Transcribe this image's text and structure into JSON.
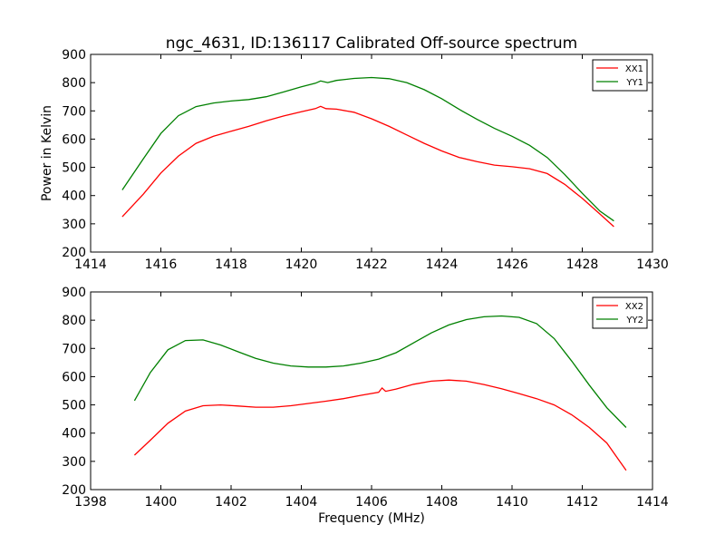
{
  "title": "ngc_4631, ID:136117 Calibrated Off-source spectrum",
  "colors": {
    "XX": "#ff0000",
    "YY": "#008000"
  },
  "chart_data": [
    {
      "type": "line",
      "title": "ngc_4631, ID:136117 Calibrated Off-source spectrum",
      "xlabel": "",
      "ylabel": "Power in Kelvin",
      "xlim": [
        1414,
        1430
      ],
      "ylim": [
        200,
        900
      ],
      "xticks": [
        1414,
        1416,
        1418,
        1420,
        1422,
        1424,
        1426,
        1428,
        1430
      ],
      "yticks": [
        200,
        300,
        400,
        500,
        600,
        700,
        800,
        900
      ],
      "legend": "top-right",
      "series": [
        {
          "name": "XX1",
          "color": "#ff0000",
          "x": [
            1414.9,
            1415.5,
            1416,
            1416.5,
            1417,
            1417.5,
            1418,
            1418.5,
            1419,
            1419.5,
            1420,
            1420.4,
            1420.55,
            1420.7,
            1421,
            1421.5,
            1422,
            1422.5,
            1423,
            1423.5,
            1424,
            1424.5,
            1425,
            1425.5,
            1426,
            1426.5,
            1427,
            1427.5,
            1428,
            1428.5,
            1428.9
          ],
          "y": [
            325,
            405,
            480,
            540,
            585,
            610,
            628,
            645,
            665,
            682,
            697,
            708,
            716,
            708,
            706,
            695,
            672,
            645,
            615,
            585,
            558,
            535,
            520,
            508,
            502,
            495,
            478,
            440,
            390,
            335,
            290
          ]
        },
        {
          "name": "YY1",
          "color": "#008000",
          "x": [
            1414.9,
            1415.5,
            1416,
            1416.5,
            1417,
            1417.5,
            1418,
            1418.5,
            1419,
            1419.5,
            1420,
            1420.4,
            1420.55,
            1420.75,
            1421,
            1421.5,
            1422,
            1422.5,
            1423,
            1423.5,
            1424,
            1424.5,
            1425,
            1425.5,
            1426,
            1426.5,
            1427,
            1427.5,
            1428,
            1428.5,
            1428.9
          ],
          "y": [
            420,
            530,
            620,
            683,
            715,
            728,
            735,
            740,
            750,
            767,
            785,
            798,
            806,
            800,
            808,
            815,
            818,
            814,
            800,
            775,
            743,
            705,
            670,
            638,
            610,
            578,
            535,
            475,
            408,
            345,
            310
          ]
        }
      ]
    },
    {
      "type": "line",
      "title": "",
      "xlabel": "Frequency (MHz)",
      "ylabel": "",
      "xlim": [
        1398,
        1414
      ],
      "ylim": [
        200,
        900
      ],
      "xticks": [
        1398,
        1400,
        1402,
        1404,
        1406,
        1408,
        1410,
        1412,
        1414
      ],
      "yticks": [
        200,
        300,
        400,
        500,
        600,
        700,
        800,
        900
      ],
      "legend": "top-right",
      "series": [
        {
          "name": "XX2",
          "color": "#ff0000",
          "x": [
            1399.25,
            1399.7,
            1400.2,
            1400.7,
            1401.2,
            1401.7,
            1402.2,
            1402.7,
            1403.2,
            1403.7,
            1404.2,
            1404.7,
            1405.2,
            1405.7,
            1406.2,
            1406.3,
            1406.4,
            1406.7,
            1407.2,
            1407.7,
            1408.2,
            1408.7,
            1409.2,
            1409.7,
            1410.2,
            1410.7,
            1411.2,
            1411.7,
            1412.2,
            1412.7,
            1413.25
          ],
          "y": [
            322,
            375,
            435,
            478,
            497,
            500,
            496,
            492,
            492,
            497,
            505,
            513,
            522,
            534,
            545,
            560,
            548,
            556,
            573,
            584,
            588,
            584,
            572,
            557,
            540,
            522,
            500,
            465,
            420,
            365,
            268
          ]
        },
        {
          "name": "YY2",
          "color": "#008000",
          "x": [
            1399.25,
            1399.7,
            1400.2,
            1400.7,
            1401.2,
            1401.7,
            1402.2,
            1402.7,
            1403.2,
            1403.7,
            1404.2,
            1404.7,
            1405.2,
            1405.7,
            1406.2,
            1406.7,
            1407.2,
            1407.7,
            1408.2,
            1408.7,
            1409.2,
            1409.7,
            1410.2,
            1410.7,
            1411.2,
            1411.7,
            1412.2,
            1412.7,
            1413.25
          ],
          "y": [
            515,
            615,
            695,
            728,
            730,
            712,
            688,
            665,
            648,
            638,
            634,
            634,
            638,
            648,
            662,
            685,
            720,
            755,
            783,
            802,
            812,
            815,
            810,
            788,
            735,
            655,
            570,
            490,
            420
          ]
        }
      ]
    }
  ]
}
